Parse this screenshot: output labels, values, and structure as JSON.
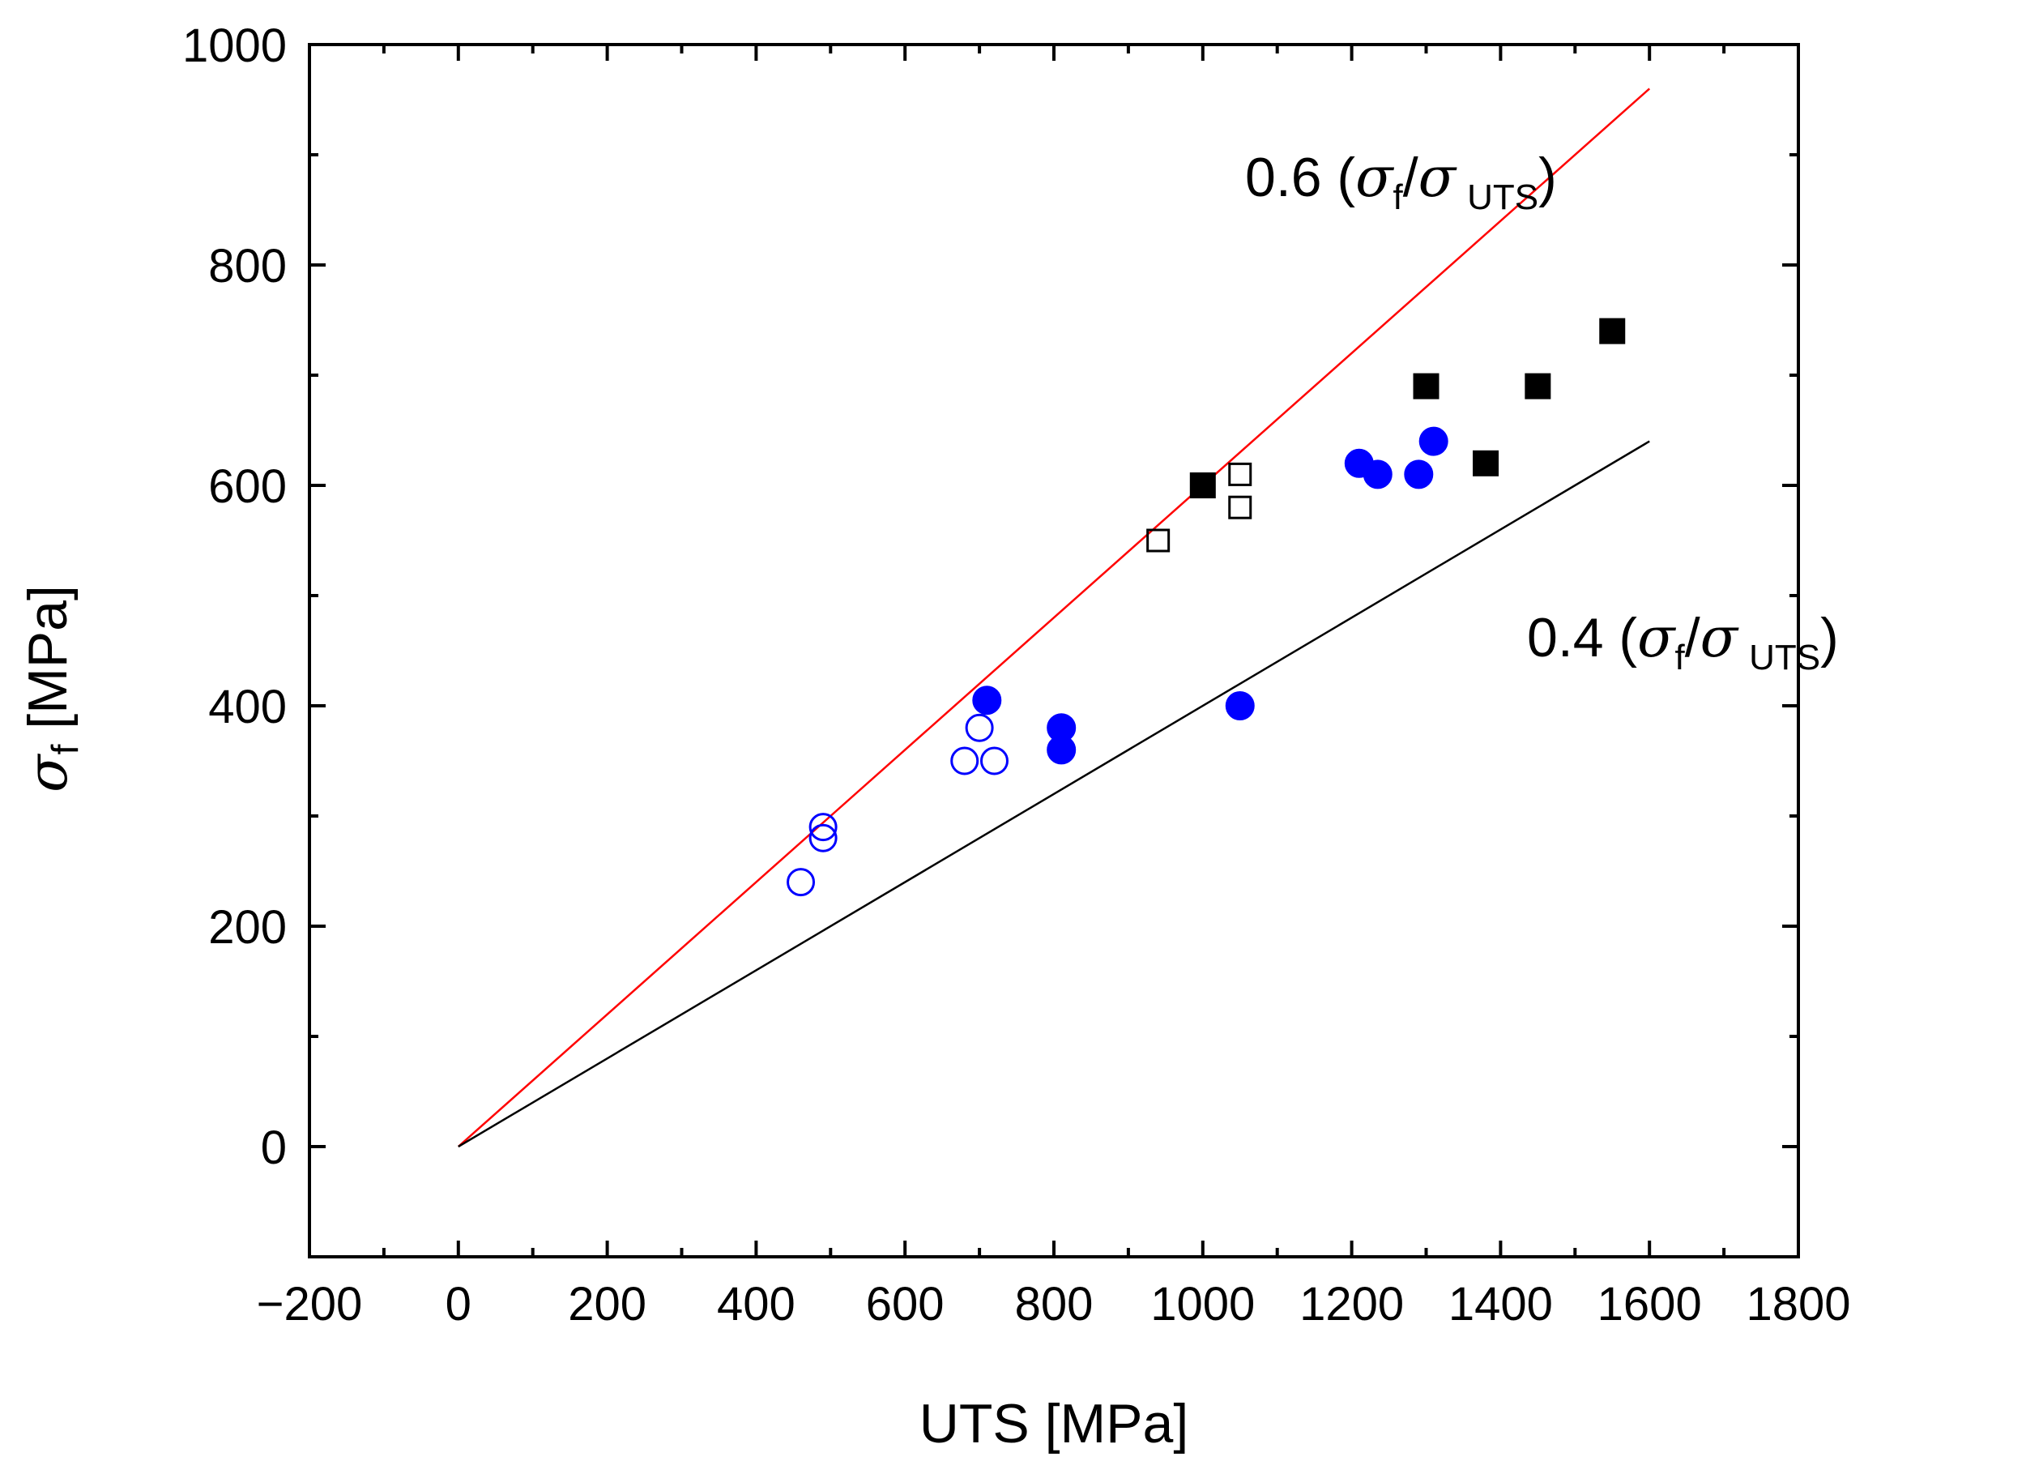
{
  "chart_data": {
    "type": "scatter",
    "title": "",
    "xlabel": "UTS [MPa]",
    "ylabel": {
      "symbol": "σ",
      "subscript": "f",
      "unit": " [MPa]"
    },
    "xlim": [
      -200,
      1800
    ],
    "ylim": [
      -100,
      1000
    ],
    "x_ticks": [
      -200,
      0,
      200,
      400,
      600,
      800,
      1000,
      1200,
      1400,
      1600,
      1800
    ],
    "x_tick_labels": [
      "−200",
      "0",
      "200",
      "400",
      "600",
      "800",
      "1000",
      "1200",
      "1400",
      "1600",
      "1800"
    ],
    "y_ticks": [
      0,
      200,
      400,
      600,
      800,
      1000
    ],
    "y_tick_labels": [
      "0",
      "200",
      "400",
      "600",
      "800",
      "1000"
    ],
    "grid": false,
    "series": [
      {
        "name": "filled-square",
        "marker": "square",
        "filled": true,
        "color": "#000000",
        "x": [
          1000,
          1300,
          1380,
          1450,
          1550
        ],
        "y": [
          600,
          690,
          620,
          690,
          740
        ]
      },
      {
        "name": "open-square",
        "marker": "square",
        "filled": false,
        "color": "#000000",
        "x": [
          940,
          1050,
          1050
        ],
        "y": [
          550,
          610,
          580
        ]
      },
      {
        "name": "filled-circle",
        "marker": "circle",
        "filled": true,
        "color": "#0000ff",
        "x": [
          710,
          810,
          810,
          1050,
          1210,
          1235,
          1290,
          1310
        ],
        "y": [
          405,
          380,
          360,
          400,
          620,
          610,
          610,
          640
        ]
      },
      {
        "name": "open-circle",
        "marker": "circle",
        "filled": false,
        "color": "#0000ff",
        "x": [
          460,
          490,
          490,
          680,
          700,
          720
        ],
        "y": [
          240,
          280,
          290,
          350,
          380,
          350
        ]
      }
    ],
    "reference_lines": [
      {
        "name": "ratio-0.6",
        "slope": 0.6,
        "x_range": [
          0,
          1600
        ],
        "color": "#ff0000"
      },
      {
        "name": "ratio-0.4",
        "slope": 0.4,
        "x_range": [
          0,
          1600
        ],
        "color": "#000000"
      }
    ],
    "annotations": [
      {
        "name": "annotation-0-6",
        "prefix": "0.6 (",
        "sym1": "σ",
        "sub1": "f",
        "slash": "/",
        "sym2": "σ",
        "sub2": "UTS",
        "suffix": ")"
      },
      {
        "name": "annotation-0-4",
        "prefix": "0.4 (",
        "sym1": "σ",
        "sub1": "f",
        "slash": "/",
        "sym2": "σ",
        "sub2": "UTS",
        "suffix": ")"
      }
    ]
  }
}
